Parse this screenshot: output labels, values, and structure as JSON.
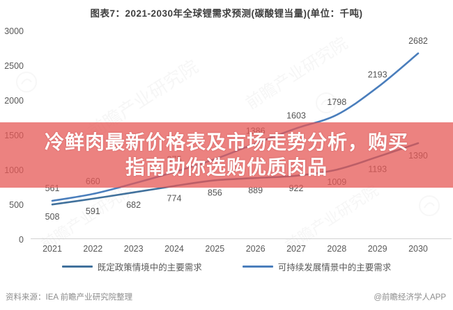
{
  "title": "图表7：2021-2030年全球锂需求预测(碳酸锂当量)(单位：千吨)",
  "overlay": {
    "headline_line1": "冷鲜肉最新价格表及市场走势分析，购买",
    "headline_line2": "指南助你选购优质肉品",
    "bg_color": "rgba(230,88,85,0.75)",
    "text_color": "#ffffff"
  },
  "chart_data": {
    "type": "line",
    "title": "图表7：2021-2030年全球锂需求预测(碳酸锂当量)(单位：千吨)",
    "unit": "千吨",
    "categories": [
      "2021",
      "2022",
      "2023",
      "2024",
      "2025",
      "2026",
      "2027",
      "2028",
      "2029",
      "2030"
    ],
    "series": [
      {
        "name": "既定政策情境中的主要需求",
        "color": "#41719c",
        "values": [
          508,
          591,
          682,
          774,
          856,
          889,
          922,
          1009,
          1193,
          1390
        ],
        "labels": [
          "508",
          "591",
          "682",
          "774",
          "856",
          "889",
          "922",
          "1009",
          "1193",
          "1390"
        ],
        "label_side": "below"
      },
      {
        "name": "可持续发展情景中的主要需求",
        "color": "#4a7ebc",
        "values": [
          561,
          660,
          810,
          975,
          1160,
          1386,
          1603,
          1798,
          2193,
          2682
        ],
        "labels": [
          "561",
          "660",
          "",
          "975",
          "",
          "1386",
          "1603",
          "1798",
          "2193",
          "2682"
        ],
        "label_side": "above"
      }
    ],
    "ylim": [
      0,
      3000
    ],
    "yticks": [
      0,
      500,
      1000,
      1500,
      2000,
      2500,
      3000
    ],
    "grid": false,
    "legend_position": "bottom",
    "label_color": "#545454",
    "axis_color": "#d2d2d2",
    "tick_color": "#595959"
  },
  "watermark": {
    "text": "前瞻产业研究院"
  },
  "footer": {
    "source": "资料来源：IEA 前瞻产业研究院整理",
    "credit": "@前瞻经济学人APP"
  }
}
